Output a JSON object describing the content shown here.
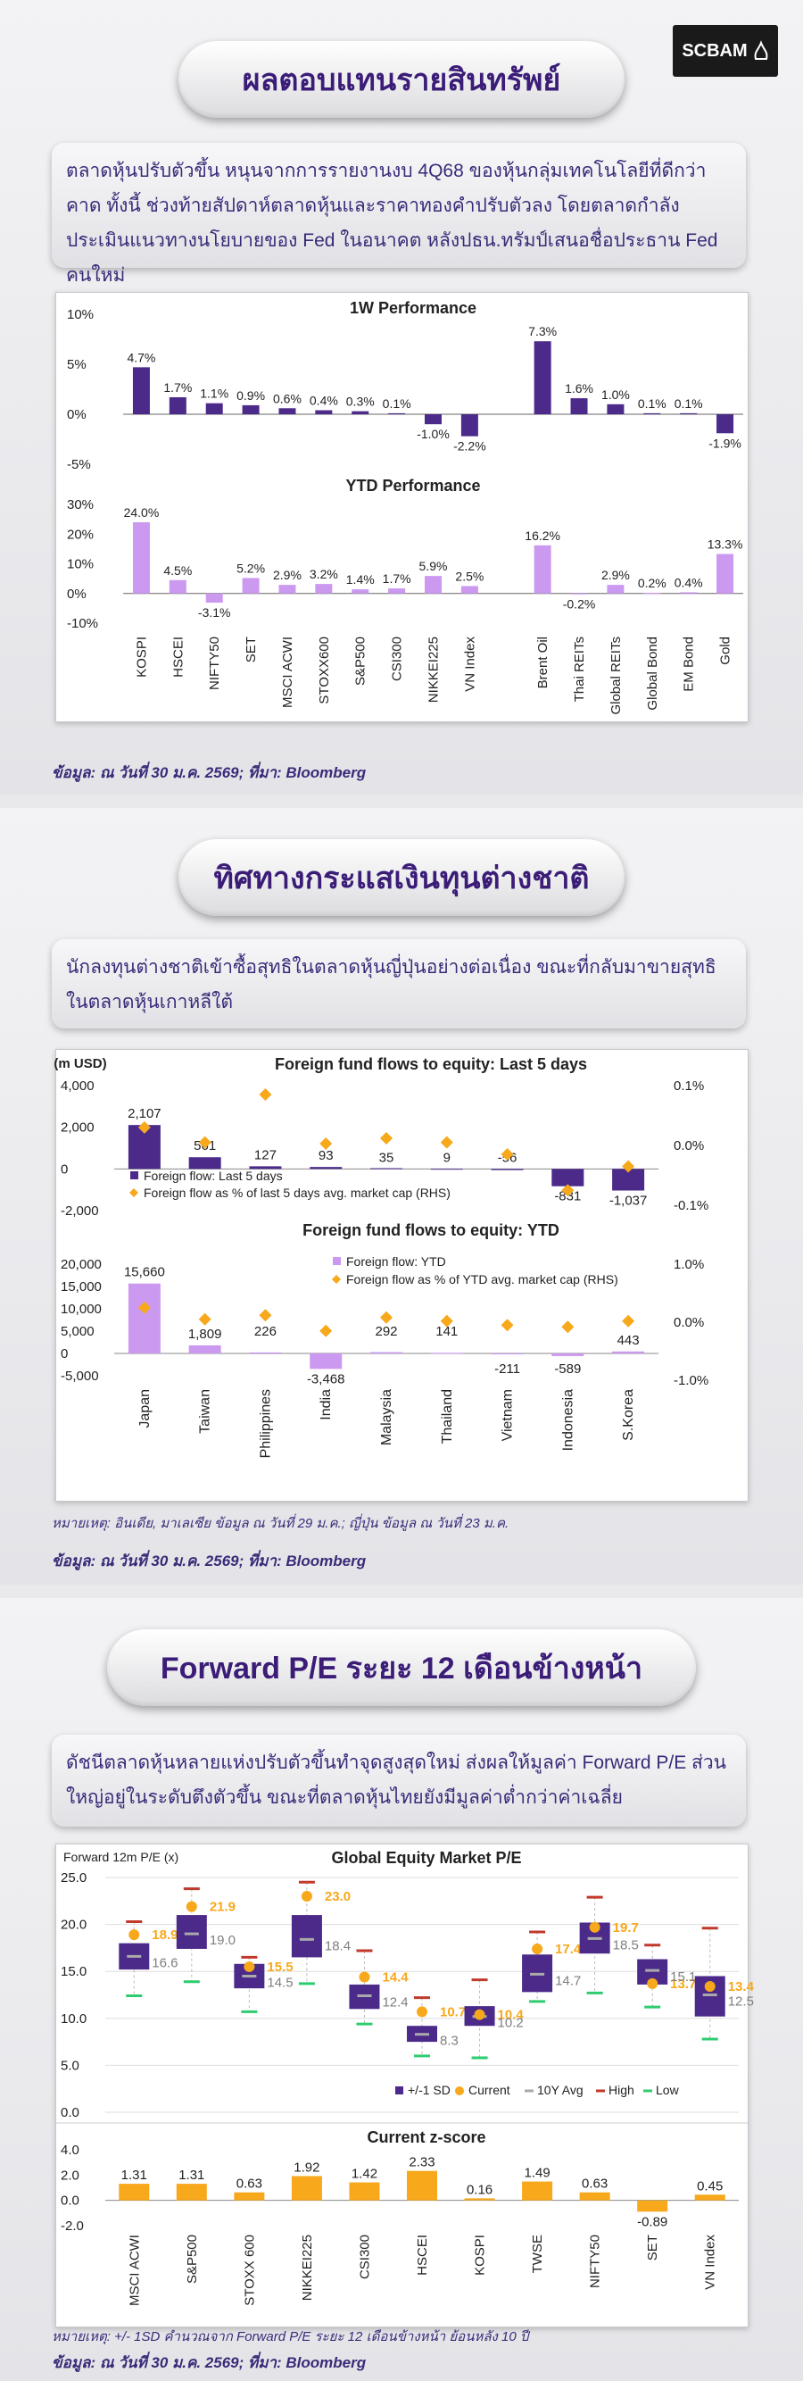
{
  "brand": {
    "name": "SCBAM"
  },
  "section1": {
    "title": "ผลตอบแทนรายสินทรัพย์",
    "summary": "ตลาดหุ้นปรับตัวขึ้น หนุนจากการรายงานงบ 4Q68 ของหุ้นกลุ่มเทคโนโลยีที่ดีกว่าคาด ทั้งนี้ ช่วงท้ายสัปดาห์ตลาดหุ้นและราคาทองคำปรับตัวลง โดยตลาดกำลังประเมินแนวทางนโยบายของ Fed ในอนาคต หลังปธน.ทรัมป์เสนอชื่อประธาน Fed คนใหม่",
    "source": "ข้อมูล: ณ วันที่ 30 ม.ค. 2569; ที่มา: Bloomberg"
  },
  "section2": {
    "title": "ทิศทางกระแสเงินทุนต่างชาติ",
    "summary": "นักลงทุนต่างชาติเข้าซื้อสุทธิในตลาดหุ้นญี่ปุ่นอย่างต่อเนื่อง ขณะที่กลับมาขายสุทธิในตลาดหุ้นเกาหลีใต้",
    "note": "หมายเหตุ: อินเดีย, มาเลเซีย ข้อมูล ณ วันที่ 29 ม.ค.; ญี่ปุ่น ข้อมูล ณ วันที่ 23 ม.ค.",
    "source": "ข้อมูล: ณ วันที่ 30 ม.ค. 2569; ที่มา: Bloomberg"
  },
  "section3": {
    "title": "Forward P/E ระยะ 12 เดือนข้างหน้า",
    "summary": "ดัชนีตลาดหุ้นหลายแห่งปรับตัวขึ้นทำจุดสูงสุดใหม่ ส่งผลให้มูลค่า Forward P/E ส่วนใหญ่อยู่ในระดับตึงตัวขึ้น ขณะที่ตลาดหุ้นไทยยังมีมูลค่าต่ำกว่าค่าเฉลี่ย",
    "note": "หมายเหตุ: +/- 1SD คำนวณจาก Forward P/E ระยะ 12 เดือนข้างหน้า ย้อนหลัง 10 ปี",
    "source": "ข้อมูล: ณ วันที่ 30 ม.ค. 2569; ที่มา: Bloomberg"
  },
  "colors": {
    "dark_purple": "#4b2a8a",
    "light_purple": "#cc99f0",
    "orange": "#f7a81b",
    "red": "#c0392b",
    "green": "#2ecc71",
    "gray": "#7f7f7f",
    "title_text": "#3b1d78"
  },
  "chart_data": [
    {
      "id": "perf_1w",
      "type": "bar",
      "title": "1W Performance",
      "categories": [
        "KOSPI",
        "HSCEI",
        "NIFTY50",
        "SET",
        "MSCI ACWI",
        "STOXX600",
        "S&P500",
        "CSI300",
        "NIKKEI225",
        "VN Index",
        "Brent Oil",
        "Thai REITs",
        "Global REITs",
        "Global Bond",
        "EM Bond",
        "Gold"
      ],
      "values": [
        4.7,
        1.7,
        1.1,
        0.9,
        0.6,
        0.4,
        0.3,
        0.1,
        -1.0,
        -2.2,
        7.3,
        1.6,
        1.0,
        0.1,
        0.1,
        -1.9
      ],
      "labels": [
        "4.7%",
        "1.7%",
        "1.1%",
        "0.9%",
        "0.6%",
        "0.4%",
        "0.3%",
        "0.1%",
        "-1.0%",
        "-2.2%",
        "7.3%",
        "1.6%",
        "1.0%",
        "0.1%",
        "0.1%",
        "-1.9%"
      ],
      "ylim": [
        -5,
        10
      ],
      "yticks": [
        "10%",
        "5%",
        "0%",
        "-5%"
      ]
    },
    {
      "id": "perf_ytd",
      "type": "bar",
      "title": "YTD Performance",
      "categories": [
        "KOSPI",
        "HSCEI",
        "NIFTY50",
        "SET",
        "MSCI ACWI",
        "STOXX600",
        "S&P500",
        "CSI300",
        "NIKKEI225",
        "VN Index",
        "Brent Oil",
        "Thai REITs",
        "Global REITs",
        "Global Bond",
        "EM Bond",
        "Gold"
      ],
      "values": [
        24.0,
        4.5,
        -3.1,
        5.2,
        2.9,
        3.2,
        1.4,
        1.7,
        5.9,
        2.5,
        16.2,
        -0.2,
        2.9,
        0.2,
        0.4,
        13.3
      ],
      "labels": [
        "24.0%",
        "4.5%",
        "-3.1%",
        "5.2%",
        "2.9%",
        "3.2%",
        "1.4%",
        "1.7%",
        "5.9%",
        "2.5%",
        "16.2%",
        "-0.2%",
        "2.9%",
        "0.2%",
        "0.4%",
        "13.3%"
      ],
      "ylim": [
        -10,
        30
      ],
      "yticks": [
        "30%",
        "20%",
        "10%",
        "0%",
        "-10%"
      ]
    },
    {
      "id": "flows_5d",
      "type": "bar",
      "title": "Foreign fund flows to equity: Last 5 days",
      "ylabel": "(m USD)",
      "categories": [
        "Japan",
        "Taiwan",
        "Philippines",
        "India",
        "Malaysia",
        "Thailand",
        "Vietnam",
        "Indonesia",
        "S.Korea"
      ],
      "series": [
        {
          "name": "Foreign flow: Last 5 days",
          "values": [
            2107,
            561,
            127,
            93,
            35,
            9,
            -56,
            -831,
            -1037
          ],
          "labels": [
            "2,107",
            "561",
            "127",
            "93",
            "35",
            "9",
            "-56",
            "-831",
            "-1,037"
          ]
        },
        {
          "name": "Foreign flow as % of last 5 days avg. market cap (RHS)",
          "values": [
            0.03,
            0.005,
            0.085,
            0.003,
            0.012,
            0.005,
            -0.015,
            -0.075,
            -0.035
          ]
        }
      ],
      "ylim": [
        -2000,
        4000
      ],
      "y2lim": [
        -0.1,
        0.1
      ],
      "yticks": [
        "4,000",
        "2,000",
        "0",
        "-2,000"
      ],
      "y2ticks": [
        "0.1%",
        "0.0%",
        "-0.1%"
      ]
    },
    {
      "id": "flows_ytd",
      "type": "bar",
      "title": "Foreign fund flows to equity: YTD",
      "categories": [
        "Japan",
        "Taiwan",
        "Philippines",
        "India",
        "Malaysia",
        "Thailand",
        "Vietnam",
        "Indonesia",
        "S.Korea"
      ],
      "series": [
        {
          "name": "Foreign flow: YTD",
          "values": [
            15660,
            1809,
            226,
            -3468,
            292,
            141,
            -211,
            -589,
            443
          ],
          "labels": [
            "15,660",
            "1,809",
            "226",
            "-3,468",
            "292",
            "141",
            "-211",
            "-589",
            "443"
          ]
        },
        {
          "name": "Foreign flow as % of YTD avg. market cap (RHS)",
          "values": [
            0.25,
            0.05,
            0.12,
            -0.15,
            0.08,
            0.02,
            -0.05,
            -0.08,
            0.02
          ]
        }
      ],
      "ylim": [
        -5000,
        20000
      ],
      "y2lim": [
        -1.0,
        1.0
      ],
      "yticks": [
        "20,000",
        "15,000",
        "10,000",
        "5,000",
        "0",
        "-5,000"
      ],
      "y2ticks": [
        "1.0%",
        "0.0%",
        "-1.0%"
      ]
    },
    {
      "id": "pe",
      "type": "bar",
      "title": "Global Equity Market P/E",
      "ylabel": "Forward 12m P/E (x)",
      "categories": [
        "MSCI ACWI",
        "S&P500",
        "STOXX 600",
        "NIKKEI225",
        "CSI300",
        "HSCEI",
        "KOSPI",
        "TWSE",
        "NIFTY50",
        "SET",
        "VN Index"
      ],
      "series": [
        {
          "name": "+/-1 SD",
          "low": [
            15.2,
            17.4,
            13.2,
            16.5,
            11.0,
            7.5,
            9.2,
            12.8,
            16.9,
            13.6,
            10.2
          ],
          "high": [
            18.0,
            21.0,
            15.8,
            21.0,
            13.6,
            9.2,
            11.3,
            16.8,
            20.2,
            16.3,
            14.5
          ]
        },
        {
          "name": "Current",
          "values": [
            18.9,
            21.9,
            15.5,
            23.0,
            14.4,
            10.7,
            10.4,
            17.4,
            19.7,
            13.7,
            13.4
          ]
        },
        {
          "name": "10Y Avg",
          "values": [
            16.6,
            19.0,
            14.5,
            18.4,
            12.4,
            8.3,
            10.2,
            14.7,
            18.5,
            15.1,
            12.5
          ]
        },
        {
          "name": "High",
          "values": [
            20.3,
            23.8,
            16.5,
            24.5,
            17.2,
            12.2,
            14.1,
            19.2,
            22.9,
            17.8,
            19.6
          ]
        },
        {
          "name": "Low",
          "values": [
            12.4,
            13.9,
            10.7,
            13.7,
            9.4,
            6.0,
            5.8,
            11.8,
            12.7,
            11.2,
            7.8
          ]
        }
      ],
      "ylim": [
        0,
        25
      ],
      "yticks": [
        "25.0",
        "20.0",
        "15.0",
        "10.0",
        "5.0",
        "0.0"
      ]
    },
    {
      "id": "zscore",
      "type": "bar",
      "title": "Current z-score",
      "categories": [
        "MSCI ACWI",
        "S&P500",
        "STOXX 600",
        "NIKKEI225",
        "CSI300",
        "HSCEI",
        "KOSPI",
        "TWSE",
        "NIFTY50",
        "SET",
        "VN Index"
      ],
      "values": [
        1.31,
        1.31,
        0.63,
        1.92,
        1.42,
        2.33,
        0.16,
        1.49,
        0.63,
        -0.89,
        0.45
      ],
      "labels": [
        "1.31",
        "1.31",
        "0.63",
        "1.92",
        "1.42",
        "2.33",
        "0.16",
        "1.49",
        "0.63",
        "-0.89",
        "0.45"
      ],
      "ylim": [
        -2,
        4
      ],
      "yticks": [
        "4.0",
        "2.0",
        "0.0",
        "-2.0"
      ]
    }
  ]
}
